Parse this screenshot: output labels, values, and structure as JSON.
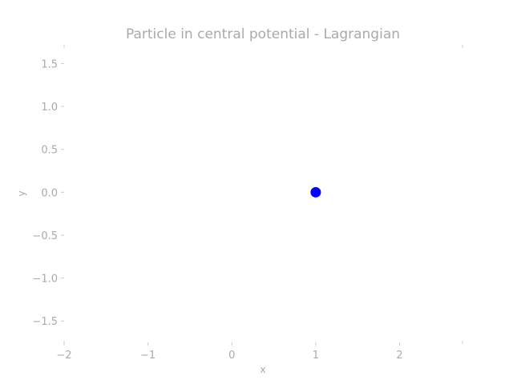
{
  "chart_data": {
    "type": "scatter",
    "title": "Particle in central potential - Lagrangian",
    "xlabel": "x",
    "ylabel": "y",
    "xlim": [
      -2.0,
      2.75
    ],
    "ylim": [
      -1.75,
      1.7
    ],
    "xticks": [
      {
        "value": -2,
        "label": "−2"
      },
      {
        "value": -1,
        "label": "−1"
      },
      {
        "value": 0,
        "label": "0"
      },
      {
        "value": 1,
        "label": "1"
      },
      {
        "value": 2,
        "label": "2"
      }
    ],
    "yticks": [
      {
        "value": 1.5,
        "label": "1.5"
      },
      {
        "value": 1.0,
        "label": "1.0"
      },
      {
        "value": 0.5,
        "label": "0.5"
      },
      {
        "value": 0.0,
        "label": "0.0"
      },
      {
        "value": -0.5,
        "label": "−0.5"
      },
      {
        "value": -1.0,
        "label": "−1.0"
      },
      {
        "value": -1.5,
        "label": "−1.5"
      }
    ],
    "grid": false,
    "series": [
      {
        "points": [
          {
            "x": 1.0,
            "y": 0.0
          }
        ],
        "color": "#0000ff"
      }
    ]
  }
}
